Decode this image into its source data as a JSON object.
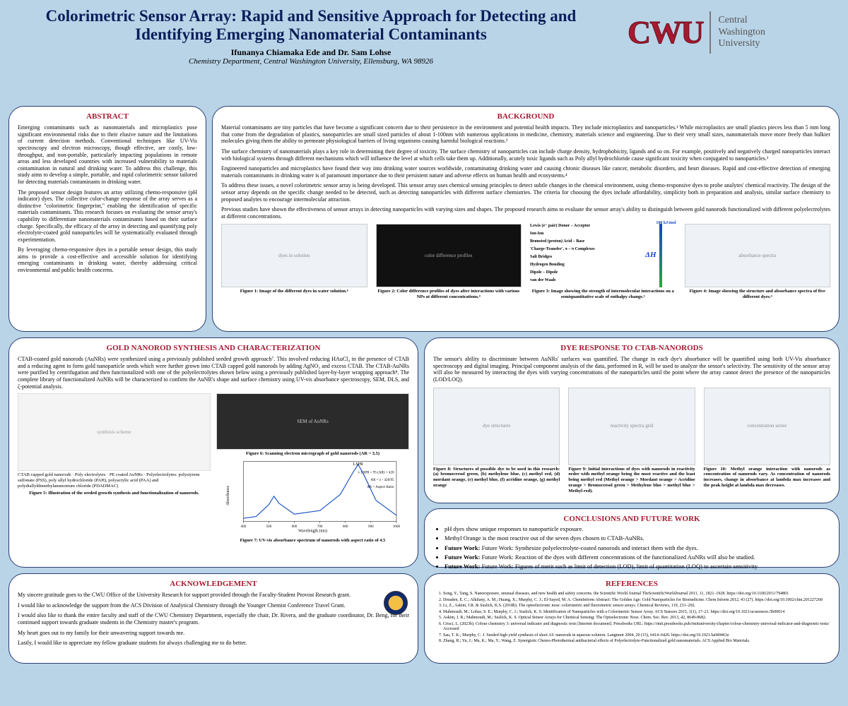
{
  "header": {
    "title_l1": "Colorimetric Sensor Array: Rapid and Sensitive Approach for Detecting and",
    "title_l2": "Identifying Emerging Nanomaterial Contaminants",
    "authors": "Ifunanya Chiamaka Ede and Dr. Sam Lohse",
    "affiliation": "Chemistry Department, Central Washington University, Ellensburg, WA 98926",
    "logo_mark": "CWU",
    "logo_words_l1": "Central",
    "logo_words_l2": "Washington",
    "logo_words_l3": "University"
  },
  "colors": {
    "page_bg": "#b9d4e7",
    "panel_bg": "#ffffff",
    "panel_border": "#2a3e73",
    "heading": "#a71930",
    "title": "#0b1e5a",
    "brand": "#a71930",
    "scale_blue": "#1744c9",
    "scale_green": "#1fae3a"
  },
  "abstract": {
    "title": "ABSTRACT",
    "p1": "Emerging contaminants such as nanomaterials and microplastics pose significant environmental risks due to their elusive nature and the limitations of current detection methods. Conventional techniques like UV-Vis spectroscopy and electron microscopy, though effective, are costly, low-throughput, and non-portable, particularly impacting populations in remote areas and less developed countries with increased vulnerability to materials contamination in natural and drinking water. To address this challenge, this study aims to develop a simple, portable, and rapid colorimetric sensor tailored for detecting materials contaminants in drinking water.",
    "p2": "The proposed sensor design features an array utilizing chemo-responsive (pH indicator) dyes. The collective color-change response of the array serves as a distinctive \"colorimetric fingerprint,\" enabling the identification of specific materials contaminants. This research focuses on evaluating the sensor array's capability to differentiate nanomaterials contaminants based on their surface charge. Specifically, the efficacy of the array in detecting and quantifying poly electrolyte-coated gold nanoparticles will be systematically evaluated through experimentation.",
    "p3": "By leveraging chemo-responsive dyes in a portable sensor design, this study aims to provide a cost-effective and accessible solution for identifying emerging contaminants in drinking water, thereby addressing critical environmental and public health concerns."
  },
  "background": {
    "title": "BACKGROUND",
    "p1": "Material contaminants are tiny particles that have become a significant concern due to their persistence in the environment and potential health impacts. They include microplastics and nanoparticles.¹ While microplastics are small plastics pieces less than 5 mm long that come from the degradation of plastics, nanoparticles are small sized particles of about 1-100nm with numerous applications in medicine, chemistry, materials science and engineering. Due to their very small sizes, nanomaterials move more freely than bulkier molecules giving them the ability to permeate physiological barriers of living organisms causing harmful biological reactions.²",
    "p2": "The surface chemistry of nanomaterials plays a key role in determining their degree of toxicity. The surface chemistry of nanoparticles can include charge density, hydrophobicity, ligands and so on. For example, positively and negatively charged nanoparticles interact with biological systems through different mechanisms which will influence the level at which cells take them up. Additionally, acutely toxic ligands such as Poly allyl hydrochloride cause significant toxicity when conjugated to nanoparticles.³",
    "p3": "Engineered nanoparticles and microplastics have found their way into drinking water sources worldwide, contaminating drinking water and causing chronic diseases like cancer, metabolic disorders, and heart diseases. Rapid and cost-effective detection of emerging materials contaminants in drinking water is of paramount importance due to their persistent nature and adverse effects on human health and ecosystems.⁴",
    "p4": "To address these issues, a novel colorimetric sensor array is being developed. This sensor array uses chemical sensing principles to detect subtle changes in the chemical environment, using chemo-responsive dyes to probe analytes' chemical reactivity. The design of the sensor array depends on the specific change needed to be detected, such as detecting nanoparticles with different surface chemistries. The criteria for choosing the dyes include affordability, simplicity both in preparation and analysis, similar surface chemistry to proposed analytes to encourage intermolecular attraction.",
    "p5": "Previous studies have shown the effectiveness of sensor arrays in detecting nanoparticles with varying sizes and shapes. The proposed research aims to evaluate the sensor array's ability to distinguish between gold nanorods functionalized with different polyelectrolytes at different concentrations.",
    "fig1_cap": "Figure 1: Image of the different dyes in water solution.⁶",
    "fig2_cap": "Figure 2: Color difference profiles of dyes after interactions with various NPs at different concentrations.⁴",
    "fig3": {
      "cap": "Figure 3: Image showing the strength of intermolecular interactions on a semiquantitative scale of enthalpy change.⁵",
      "top_lbl": "100 kJ/mol",
      "dh": "ΔH",
      "rows": [
        "Lewis (e⁻ pair) Donor – Acceptor",
        "Ion-Ion",
        "Brønsted (proton) Acid – Base",
        "'Charge-Transfer', π – π Complexes",
        "Salt Bridges",
        "Hydrogen Bonding",
        "Dipole – Dipole",
        "van der Waals"
      ],
      "ticks": [
        "100",
        "80",
        "60",
        "40",
        "20",
        "0"
      ]
    },
    "fig4_cap": "Figure 4: Image showing the structure and absorbance spectra of five different dyes.⁴"
  },
  "synth": {
    "title": "GOLD NANOROD SYNTHESIS AND CHARACTERIZATION",
    "p1": "CTAB-coated gold nanorods (AuNRs) were synthesized using a previously published seeded growth approach⁷. This involved reducing HAuCl₄ in the presence of CTAB and a reducing agent to form gold nanoparticle seeds which were further grown into CTAB capped gold nanorods by adding AgNO₃ and excess CTAB. The CTAB-AuNRs were purified by centrifugation and then functionalized with one of the polyelectrolytes shown below using a previously published layer-by-layer wrapping approach⁸. The complete library of functionalized AuNRs will be characterized to confirm the AuNR's shape and surface chemistry using UV-vis absorbance spectroscopy, SEM, DLS, and ζ-potential analysis.",
    "fig5_cap": "Figure 5: Illustration of the seeded growth synthesis and functionalization of nanorods.",
    "fig5_labels": "CTAB capped gold nanorods · Poly electrolytes · PE coated AuNRs · Polyelectrolytes: polystyrene sulfonate (PSS), poly allyl hydrochloride (PAH), polyacrylic acid (PAA) and polydiallyldimethylammonium chloride (PDADMAC)",
    "fig6_cap": "Figure 6: Scanning electron micrograph of gold nanorods (AR ~ 3.5)",
    "fig7": {
      "cap": "Figure 7: UV-vis absorbance spectrum of nanorods with aspect ratio of 4.5",
      "xlabel": "Wavelength (nm)",
      "ylabel": "Absorbance",
      "xlim": [
        400,
        1000
      ],
      "ylim": [
        0,
        1.0
      ],
      "series_color": "#1f56c4",
      "annot1": "LSPR",
      "annot2": "λ LSPR = 95 (AR) + 420",
      "annot3": "AR = λ - 420/95",
      "annot4": "AR = Aspect Ratio",
      "points": [
        [
          400,
          0.05
        ],
        [
          450,
          0.08
        ],
        [
          500,
          0.28
        ],
        [
          520,
          0.42
        ],
        [
          540,
          0.3
        ],
        [
          600,
          0.12
        ],
        [
          700,
          0.18
        ],
        [
          780,
          0.45
        ],
        [
          830,
          0.82
        ],
        [
          850,
          0.95
        ],
        [
          870,
          0.8
        ],
        [
          920,
          0.35
        ],
        [
          1000,
          0.1
        ]
      ]
    }
  },
  "dye": {
    "title": "DYE RESPONSE TO CTAB-NANORODS",
    "p1": "The sensor's ability to discriminate between AuNRs' surfaces was quantified. The change in each dye's absorbance will be quantified using both UV-Vis absorbance spectroscopy and digital imaging. Principal component analysis of the data, performed in R, will be used to analyze the sensor's selectivity. The sensitivity of the sensor array will also be measured by interacting the dyes with varying concentrations of the nanoparticles until the point where the array cannot detect the presence of the nanoparticles (LOD/LOQ).",
    "fig8_cap": "Figure 8: Structures of possible dye to be used in this research: (a) bromocresol green, (b) methylene blue, (c) methyl red, (d) mordant orange, (e) methyl blue, (f) acridine orange, (g) methyl orange",
    "fig9_cap": "Figure 9: Initial interactions of dyes with nanorods in reactivity order with methyl orange being the most reactive and the least being methyl red (Methyl orange > Mordant orange > Acridine orange > Bromocresol green > Methylene blue > methyl blue > Methyl red).",
    "fig10_cap": "Figure 10: Methyl orange interaction with nanorods as concentration of nanorods vary. As concentration of nanorods increases, change in absorbance at lambda max increases and the peak height at lambda max decreases."
  },
  "conclusions": {
    "title": "CONCLUSIONS AND FUTURE WORK",
    "b1": "pH dyes show unique responses to nanoparticle exposure.",
    "b2": "Methyl Orange is the most reactive out of the seven dyes chosen to CTAB-AuNRs.",
    "b3": "Future Work: Synthesize polyelectrolyte-coated nanorods and interact them with the dyes.",
    "b4": "Future Work: Reaction of the dyes with different concentrations of the functionalized AuNRs will also be studied.",
    "b5": "Future Work: Figures of merit such as limit of detection (LOD), limit of quantitation (LOQ) to ascertain sensitivity"
  },
  "ack": {
    "title": "ACKNOWLEDGEMENT",
    "p1": "My sincere gratitude goes to the CWU Office of the University Research for support provided through the Faculty-Student Provost Research grant.",
    "p2": "I would like to acknowledge the support from the ACS Division of Analytical Chemistry through the Younger Chemist Conference Travel Grant.",
    "p3": "I would also like to thank the entire faculty and staff of the CWU Chemistry Department, especially the chair, Dr. Rivera, and the graduate coordinator, Dr. Beng, for their continued support towards graduate students in the Chemistry master's program.",
    "p4": "My heart goes out to my family for their unwavering support towards me.",
    "p5": "Lastly, I would like to appreciate my fellow graduate students for always challenging me to do better."
  },
  "refs": {
    "title": "REFERENCES",
    "items": [
      "Song, Y., Tang, S. Nanoexposure, unusual diseases, and new health and safety concerns. the Scientific World Journal TheScientificWorldJournal 2011, 11, 1821–1928. https://doi.org/10.1100/2011/794801",
      "Dreaden, E. C.; Alkilany, A. M.; Huang, X.; Murphy, C. J.; El-Sayed, M. A. ChemInform Abstract: The Golden Age: Gold Nanoparticles for Biomedicine. Chem Inform 2012, 43 (27). https://doi.org/10.1002/chin.201227268",
      "Li, Z., Askim, J.R. & Suslick, K.S. (2018b). The optoelectronic nose: colorimetric and fluorometric sensor arrays. Chemical Reviews, 119, 231–292.",
      "Mahmoudi, M.; Lohse, S. E.; Murphy, C. J.; Suslick, K. S. Identification of Nanoparticles with a Colorimetric Sensor Array. ACS Sensors 2015, 1(1), 17–21. https://doi.org/10.1021/acssensors.5b00014",
      "Askim, J. R.; Mahmoudi, M.; Suslick, K. S. Optical Sensor Arrays for Chemical Sensing: The Optoelectronic Nose. Chem. Soc. Rev. 2013, 42, 8649-8682.",
      "Crisci, L. (2023b). Colour chemistry 3: universal indicator and diagnostic tests [Internet document]. Pressbooks URL: https://rmit.pressbooks.pub/rmituniversity/chapter/colour-chemistry-universal-indicator-and-diagnostic-tests/ Accessed",
      "Sau, T. K.; Murphy, C. J. Seeded high yield synthesis of short AU nanorods in aqueous solution. Langmuir 2004, 20 (15), 6414–6420. https://doi.org/10.1021/la049463z",
      "Zhang, R.; Yu, J.; Ma, K.; Ma, Y.; Wang, Z. Synergistic Chemo-Photothermal antibacterial effects of Polyelectrolyte-Functionalized gold nanomaterials. ACS Applied Bio Materials."
    ]
  }
}
